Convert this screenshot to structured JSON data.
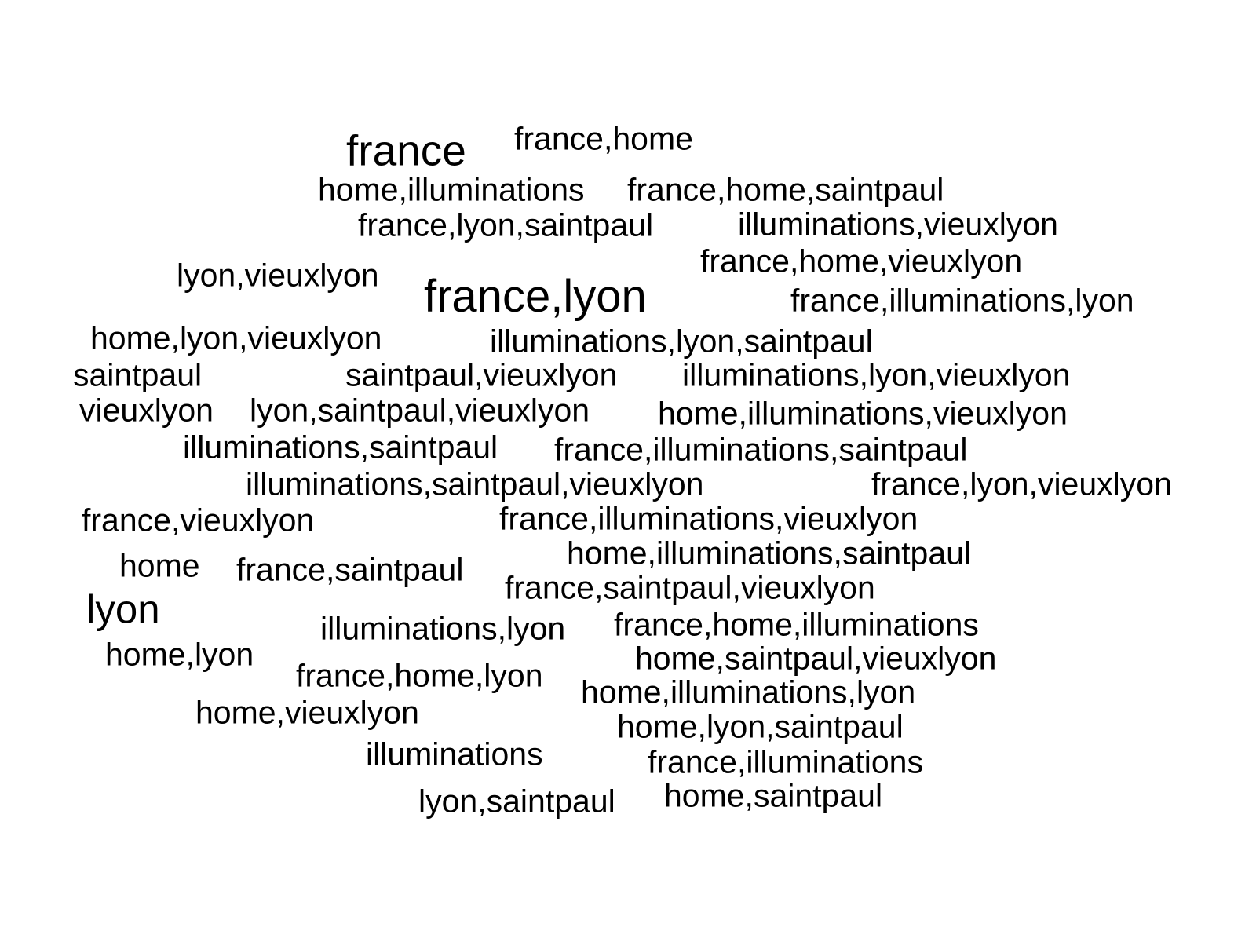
{
  "word_cloud": {
    "text_color": "#000000",
    "background": "#ffffff",
    "words": [
      "france",
      "france,home",
      "home,illuminations",
      "france,home,saintpaul",
      "france,lyon,saintpaul",
      "illuminations,vieuxlyon",
      "france,home,vieuxlyon",
      "lyon,vieuxlyon",
      "france,lyon",
      "france,illuminations,lyon",
      "home,lyon,vieuxlyon",
      "illuminations,lyon,saintpaul",
      "saintpaul",
      "saintpaul,vieuxlyon",
      "illuminations,lyon,vieuxlyon",
      "vieuxlyon",
      "lyon,saintpaul,vieuxlyon",
      "home,illuminations,vieuxlyon",
      "illuminations,saintpaul",
      "france,illuminations,saintpaul",
      "illuminations,saintpaul,vieuxlyon",
      "france,lyon,vieuxlyon",
      "france,vieuxlyon",
      "france,illuminations,vieuxlyon",
      "home,illuminations,saintpaul",
      "home",
      "france,saintpaul",
      "france,saintpaul,vieuxlyon",
      "lyon",
      "illuminations,lyon",
      "france,home,illuminations",
      "home,lyon",
      "home,saintpaul,vieuxlyon",
      "france,home,lyon",
      "home,illuminations,lyon",
      "home,vieuxlyon",
      "home,lyon,saintpaul",
      "illuminations",
      "france,illuminations",
      "home,saintpaul",
      "lyon,saintpaul"
    ]
  }
}
